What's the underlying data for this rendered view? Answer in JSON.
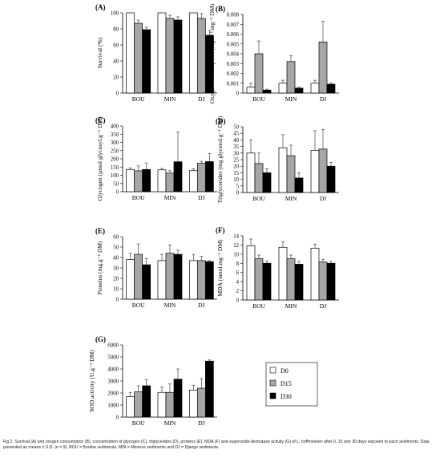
{
  "legend": {
    "items": [
      {
        "label": "D0",
        "color": "#ffffff"
      },
      {
        "label": "D15",
        "color": "#a6a6a6"
      },
      {
        "label": "D30",
        "color": "#000000"
      }
    ]
  },
  "caption": {
    "text": "Fig 2. Survival (A) and oxygen consumption (B), concentration of glycogen (C), triglycerides (D), proteins (E), MDA (F) and superoxide-dismutase activity (G) of L. hoffmeisteri after 0, 15 and 30 days exposed to each sediments. Data presented as means ± S.D. (n = 9). BOU = Boutbe sediments, MIN = Minerve sediments and DJ = Django sediments."
  },
  "chart_data": [
    {
      "panel": "(A)",
      "type": "bar",
      "ylabel": "Survival (%)",
      "categories": [
        "BOU",
        "MIN",
        "DJ"
      ],
      "ylim": [
        0,
        100
      ],
      "yticks": [
        "0",
        "20",
        "40",
        "60",
        "80",
        "100"
      ],
      "series": [
        {
          "name": "D0",
          "values": [
            100,
            100,
            100
          ],
          "err": [
            0,
            0,
            0
          ]
        },
        {
          "name": "D15",
          "values": [
            87,
            93,
            93
          ],
          "err": [
            4,
            4,
            6
          ]
        },
        {
          "name": "D30",
          "values": [
            79,
            91,
            72
          ],
          "err": [
            3,
            4,
            6
          ]
        }
      ]
    },
    {
      "panel": "(B)",
      "type": "bar",
      "ylabel": "Oxygen consumption (mg.h⁻¹.mg⁻¹ DM)",
      "categories": [
        "BOU",
        "MIN",
        "DJ"
      ],
      "ylim": [
        0,
        0.008
      ],
      "yticks": [
        "0",
        "0.001",
        "0.002",
        "0.003",
        "0.004",
        "0.005",
        "0.006",
        "0.007",
        "0.008"
      ],
      "series": [
        {
          "name": "D0",
          "values": [
            0.0006,
            0.001,
            0.001
          ],
          "err": [
            0.0004,
            0.0003,
            0.0003
          ]
        },
        {
          "name": "D15",
          "values": [
            0.004,
            0.0032,
            0.0052
          ],
          "err": [
            0.0013,
            0.0006,
            0.0021
          ]
        },
        {
          "name": "D30",
          "values": [
            0.0003,
            0.0005,
            0.0009
          ],
          "err": [
            0.0001,
            0.0001,
            0.0001
          ]
        }
      ]
    },
    {
      "panel": "(C)",
      "type": "bar",
      "ylabel": "Glycogen (µmol glycosyl.g⁻¹ DM)",
      "categories": [
        "BOU",
        "MIN",
        "DJ"
      ],
      "ylim": [
        0,
        400
      ],
      "yticks": [
        "0",
        "50",
        "100",
        "150",
        "200",
        "250",
        "300",
        "350",
        "400"
      ],
      "series": [
        {
          "name": "D0",
          "values": [
            135,
            133,
            128
          ],
          "err": [
            10,
            8,
            12
          ]
        },
        {
          "name": "D15",
          "values": [
            127,
            113,
            173
          ],
          "err": [
            30,
            15,
            12
          ]
        },
        {
          "name": "D30",
          "values": [
            135,
            182,
            183
          ],
          "err": [
            40,
            180,
            50
          ]
        }
      ]
    },
    {
      "panel": "(D)",
      "type": "bar",
      "ylabel": "Triglycerides (mg glycerol.g⁻¹ DM)",
      "categories": [
        "BOU",
        "MIN",
        "DJ"
      ],
      "ylim": [
        0,
        50
      ],
      "yticks": [
        "0",
        "5",
        "10",
        "15",
        "20",
        "25",
        "30",
        "35",
        "40",
        "45",
        "50"
      ],
      "series": [
        {
          "name": "D0",
          "values": [
            30,
            34,
            32
          ],
          "err": [
            10,
            10,
            15
          ]
        },
        {
          "name": "D15",
          "values": [
            22,
            28,
            33
          ],
          "err": [
            8,
            8,
            15
          ]
        },
        {
          "name": "D30",
          "values": [
            15,
            11,
            20
          ],
          "err": [
            3,
            4,
            3
          ]
        }
      ]
    },
    {
      "panel": "(E)",
      "type": "bar",
      "ylabel": "Proteins (mg.g⁻¹ DM)",
      "categories": [
        "BOU",
        "MIN",
        "DJ"
      ],
      "ylim": [
        0,
        60
      ],
      "yticks": [
        "0",
        "10",
        "20",
        "30",
        "40",
        "50",
        "60"
      ],
      "series": [
        {
          "name": "D0",
          "values": [
            38,
            37,
            37
          ],
          "err": [
            6,
            6,
            6
          ]
        },
        {
          "name": "D15",
          "values": [
            43,
            44,
            37
          ],
          "err": [
            10,
            8,
            4
          ]
        },
        {
          "name": "D30",
          "values": [
            33,
            43,
            36
          ],
          "err": [
            6,
            4,
            1
          ]
        }
      ]
    },
    {
      "panel": "(F)",
      "type": "bar",
      "ylabel": "MDA (nmol.mg⁻¹ DM)",
      "categories": [
        "BOU",
        "MIN",
        "DJ"
      ],
      "ylim": [
        0,
        14
      ],
      "yticks": [
        "0",
        "2",
        "4",
        "6",
        "8",
        "10",
        "12",
        "14"
      ],
      "series": [
        {
          "name": "D0",
          "values": [
            11.8,
            11.5,
            11.3
          ],
          "err": [
            1.5,
            1.2,
            0.9
          ]
        },
        {
          "name": "D15",
          "values": [
            9,
            9,
            8.3
          ],
          "err": [
            0.8,
            0.8,
            0.6
          ]
        },
        {
          "name": "D30",
          "values": [
            8,
            7.8,
            8
          ],
          "err": [
            0.5,
            0.6,
            0.4
          ]
        }
      ]
    },
    {
      "panel": "(G)",
      "type": "bar",
      "ylabel": "SOD activity (U.g⁻¹ DM)",
      "categories": [
        "BOU",
        "MIN",
        "DJ"
      ],
      "ylim": [
        0,
        6000
      ],
      "yticks": [
        "0",
        "1000",
        "2000",
        "3000",
        "4000",
        "5000",
        "6000"
      ],
      "series": [
        {
          "name": "D0",
          "values": [
            1700,
            2050,
            2250
          ],
          "err": [
            350,
            450,
            400
          ]
        },
        {
          "name": "D15",
          "values": [
            2100,
            2050,
            2400
          ],
          "err": [
            500,
            700,
            800
          ]
        },
        {
          "name": "D30",
          "values": [
            2600,
            3150,
            4650
          ],
          "err": [
            500,
            850,
            100
          ]
        }
      ]
    }
  ]
}
